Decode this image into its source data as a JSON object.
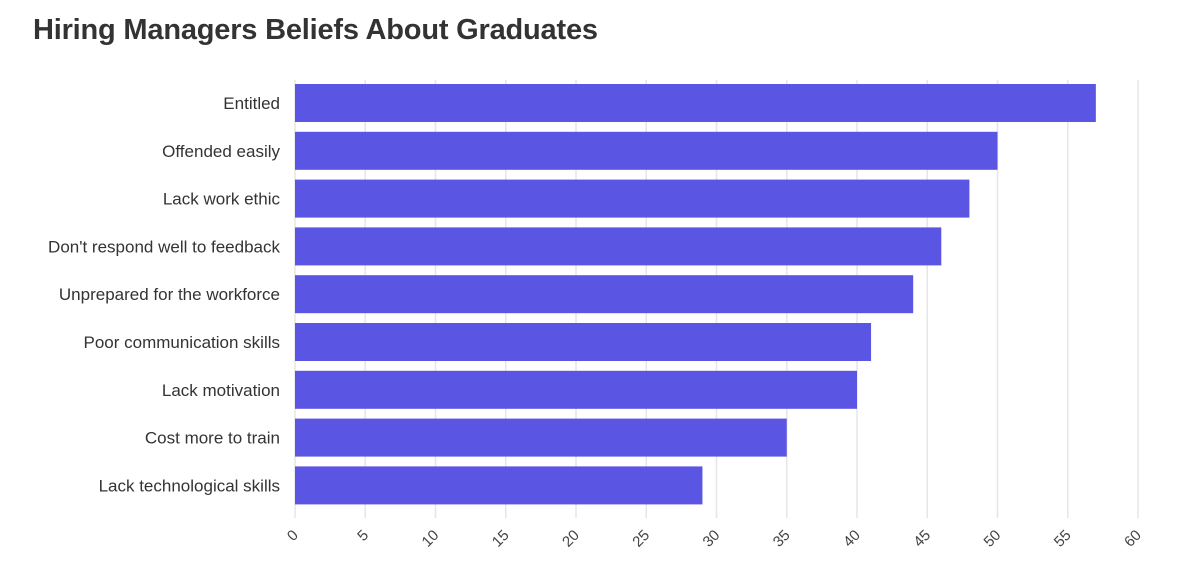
{
  "chart_data": {
    "type": "bar",
    "orientation": "horizontal",
    "title": "Hiring Managers Beliefs About Graduates",
    "xlabel": "",
    "ylabel": "",
    "categories": [
      "Entitled",
      "Offended easily",
      "Lack work ethic",
      "Don't respond well to feedback",
      "Unprepared for the workforce",
      "Poor communication skills",
      "Lack motivation",
      "Cost more to train",
      "Lack technological skills"
    ],
    "values": [
      57,
      50,
      48,
      46,
      44,
      41,
      40,
      35,
      29
    ],
    "xlim": [
      0,
      60
    ],
    "xticks": [
      "0",
      "5",
      "10",
      "15",
      "20",
      "25",
      "30",
      "35",
      "40",
      "45",
      "50",
      "55",
      "60"
    ],
    "grid": true,
    "legend": "none",
    "bar_color": "#5b55e4",
    "grid_color": "#e6e6e6",
    "text_color": "#333333"
  }
}
